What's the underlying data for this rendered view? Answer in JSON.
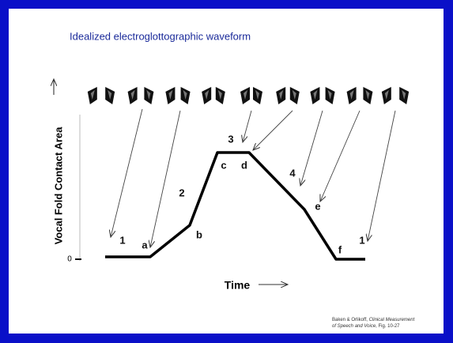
{
  "title": "Idealized electroglottographic waveform",
  "y_axis_label": "Vocal Fold Contact Area",
  "zero_label": "0",
  "x_axis_label": "Time",
  "point_labels": [
    "1",
    "a",
    "2",
    "b",
    "c",
    "3",
    "d",
    "4",
    "e",
    "f",
    "1"
  ],
  "citation": {
    "line1": [
      "Baken & Orlikoff, ",
      "Clinical Measurement"
    ],
    "line2": [
      "of Speech and Voice",
      ", Fig. 10-27"
    ]
  }
}
